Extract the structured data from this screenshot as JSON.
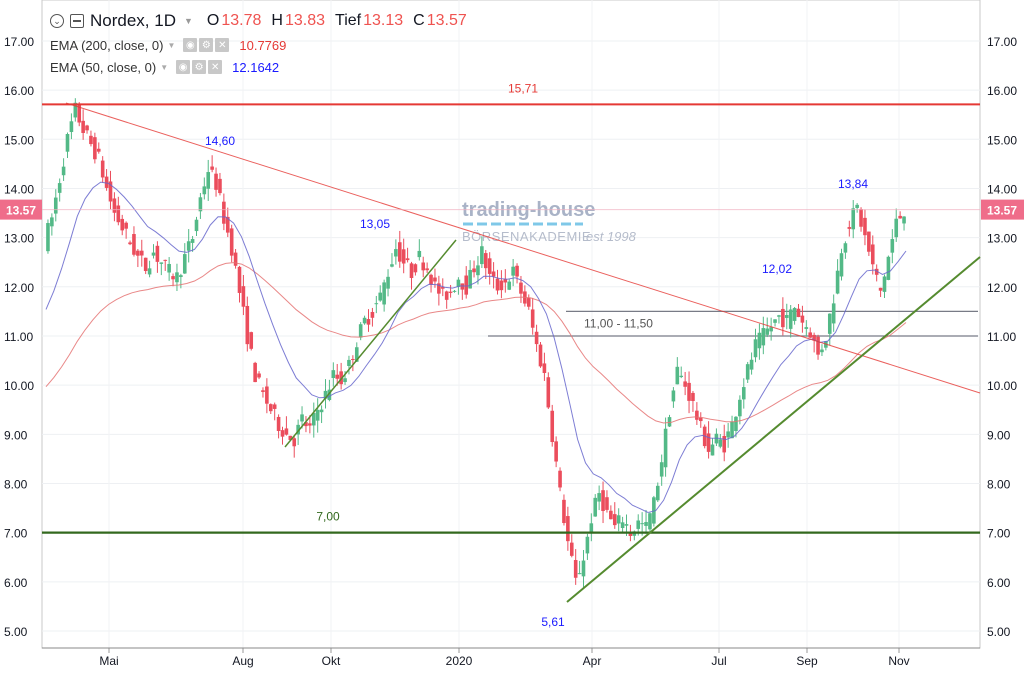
{
  "legend": {
    "symbol": "Nordex, 1D",
    "o_label": "O",
    "o_value": "13.78",
    "h_label": "H",
    "h_value": "13.83",
    "l_label": "Tief",
    "l_value": "13.13",
    "c_label": "C",
    "c_value": "13.57",
    "ema200_label": "EMA (200, close, 0)",
    "ema200_value": "10.7769",
    "ema50_label": "EMA (50, close, 0)",
    "ema50_value": "12.1642"
  },
  "colors": {
    "up": "#53b987",
    "down": "#eb4d5c",
    "ema200": "#e57373",
    "ema50": "#6666cc",
    "resistance": "#e53935",
    "support": "#33691e",
    "trend_up": "#558b2f",
    "trend_down": "#e53935",
    "zone": "#787b86",
    "annot_blue": "#1a1aff",
    "price_tag": "#ef6d8a"
  },
  "watermark": {
    "line1": "trading-house",
    "line2": "BÖRSENAKADEMIE",
    "line3": "est 1998"
  },
  "chart_data": {
    "type": "candlestick",
    "instrument": "Nordex",
    "timeframe": "1D",
    "x_axis_labels": [
      "Mai",
      "Aug",
      "Okt",
      "2020",
      "Apr",
      "Jul",
      "Sep",
      "Nov"
    ],
    "y_ticks": [
      "5.00",
      "6.00",
      "7.00",
      "8.00",
      "9.00",
      "10.00",
      "11.00",
      "12.00",
      "13.00",
      "14.00",
      "15.00",
      "16.00",
      "17.00"
    ],
    "ylim": [
      4.8,
      17.3
    ],
    "last_price": "13.57",
    "close_series": [
      12.9,
      13.4,
      14.2,
      15.0,
      15.6,
      15.2,
      14.9,
      14.6,
      14.0,
      13.5,
      13.2,
      12.9,
      12.6,
      12.4,
      12.7,
      12.5,
      12.3,
      12.2,
      12.6,
      13.0,
      13.8,
      14.4,
      14.1,
      13.4,
      12.8,
      11.9,
      11.0,
      10.2,
      9.8,
      9.5,
      9.2,
      9.0,
      8.9,
      9.3,
      9.1,
      9.5,
      9.8,
      10.2,
      10.1,
      10.4,
      10.9,
      11.3,
      11.5,
      11.8,
      12.3,
      12.8,
      12.5,
      12.3,
      12.6,
      12.4,
      12.0,
      11.8,
      11.9,
      12.2,
      12.0,
      12.4,
      12.7,
      12.2,
      12.0,
      12.1,
      12.3,
      11.9,
      11.5,
      10.8,
      10.2,
      9.0,
      7.8,
      6.8,
      6.0,
      6.5,
      7.3,
      7.8,
      7.4,
      7.1,
      7.3,
      7.0,
      7.2,
      7.1,
      7.6,
      8.5,
      9.5,
      10.3,
      10.0,
      9.6,
      9.1,
      8.7,
      8.9,
      8.8,
      9.2,
      9.8,
      10.3,
      10.8,
      11.0,
      11.2,
      11.4,
      11.3,
      11.6,
      11.3,
      11.1,
      10.6,
      11.0,
      11.8,
      12.8,
      13.3,
      13.6,
      13.0,
      12.4,
      11.9,
      12.6,
      13.3,
      13.57
    ],
    "levels": [
      {
        "label": "15,71",
        "value": 15.71
      },
      {
        "label": "7,00",
        "value": 7.0
      }
    ],
    "zone": {
      "label": "11,00 - 11,50",
      "low": 11.0,
      "high": 11.5
    },
    "annotations": [
      {
        "label": "14,60",
        "value": 14.6
      },
      {
        "label": "13,05",
        "value": 13.05
      },
      {
        "label": "5,61",
        "value": 5.61
      },
      {
        "label": "12,02",
        "value": 12.02
      },
      {
        "label": "13,84",
        "value": 13.84
      }
    ],
    "indicators": [
      {
        "name": "EMA (200, close, 0)",
        "last": 10.7769
      },
      {
        "name": "EMA (50, close, 0)",
        "last": 12.1642
      }
    ]
  }
}
